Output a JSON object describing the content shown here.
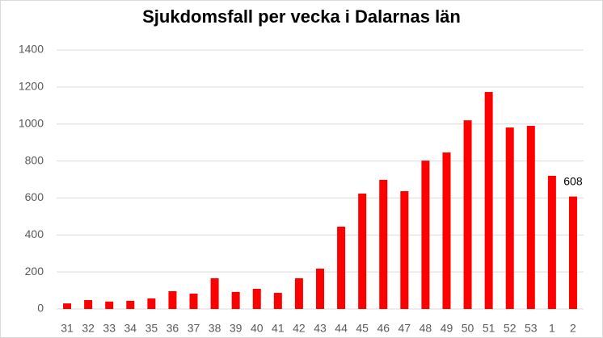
{
  "chart_data": {
    "type": "bar",
    "title": "Sjukdomsfall per vecka i Dalarnas län",
    "categories": [
      "31",
      "32",
      "33",
      "34",
      "35",
      "36",
      "37",
      "38",
      "39",
      "40",
      "41",
      "42",
      "43",
      "44",
      "45",
      "46",
      "47",
      "48",
      "49",
      "50",
      "51",
      "52",
      "53",
      "1",
      "2"
    ],
    "values": [
      30,
      48,
      40,
      44,
      57,
      96,
      83,
      166,
      92,
      109,
      87,
      166,
      218,
      445,
      624,
      698,
      637,
      802,
      846,
      1020,
      1173,
      981,
      990,
      720,
      608
    ],
    "color": "#ff0000",
    "ylim": [
      0,
      1400
    ],
    "yticks": [
      0,
      200,
      400,
      600,
      800,
      1000,
      1200,
      1400
    ],
    "grid": true
  }
}
